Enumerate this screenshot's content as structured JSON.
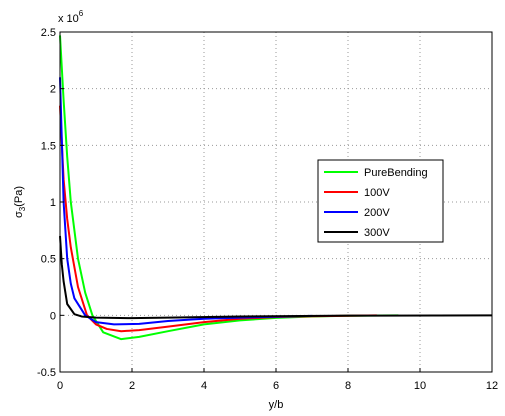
{
  "chart_data": {
    "type": "line",
    "xlabel": "y/b",
    "ylabel_symbol": "σ",
    "ylabel_subscript": "3",
    "ylabel_unit": "(Pa)",
    "y_scale_base": "x 10",
    "y_scale_exponent": "6",
    "xlim": [
      0,
      12
    ],
    "xticks": [
      0,
      2,
      4,
      6,
      8,
      10,
      12
    ],
    "ylim": [
      -0.5,
      2.5
    ],
    "yticks": [
      -0.5,
      0,
      0.5,
      1,
      1.5,
      2,
      2.5
    ],
    "grid": true,
    "legend": "right",
    "series": [
      {
        "name": "PureBending",
        "color": "#00ff00",
        "x": [
          0,
          0.1,
          0.2,
          0.3,
          0.5,
          0.7,
          0.9,
          1.2,
          1.7,
          2.2,
          3,
          4,
          5,
          6,
          7,
          8,
          9.4
        ],
        "values": [
          2.47,
          1.9,
          1.4,
          1.0,
          0.5,
          0.2,
          0.0,
          -0.15,
          -0.21,
          -0.19,
          -0.14,
          -0.08,
          -0.045,
          -0.022,
          -0.01,
          -0.004,
          0
        ]
      },
      {
        "name": "100V",
        "color": "#ff0000",
        "x": [
          0,
          0.1,
          0.2,
          0.3,
          0.5,
          0.75,
          1.0,
          1.3,
          1.7,
          2.2,
          3,
          4,
          5,
          6,
          7,
          8.8
        ],
        "values": [
          1.85,
          1.2,
          0.85,
          0.6,
          0.25,
          0.0,
          -0.08,
          -0.12,
          -0.14,
          -0.13,
          -0.1,
          -0.06,
          -0.03,
          -0.015,
          -0.008,
          0
        ]
      },
      {
        "name": "200V",
        "color": "#0000ff",
        "x": [
          0,
          0.1,
          0.2,
          0.3,
          0.4,
          0.7,
          1.0,
          1.5,
          2.2,
          3,
          4,
          5,
          7
        ],
        "values": [
          2.1,
          1.0,
          0.5,
          0.28,
          0.15,
          0.0,
          -0.06,
          -0.08,
          -0.075,
          -0.05,
          -0.03,
          -0.02,
          -0.005
        ]
      },
      {
        "name": "300V",
        "color": "#000000",
        "x": [
          0,
          0.05,
          0.1,
          0.2,
          0.4,
          0.6,
          1,
          2,
          3,
          5,
          8,
          12
        ],
        "values": [
          0.7,
          0.45,
          0.3,
          0.1,
          0.01,
          -0.01,
          -0.02,
          -0.025,
          -0.02,
          -0.01,
          -0.003,
          0
        ]
      }
    ]
  }
}
